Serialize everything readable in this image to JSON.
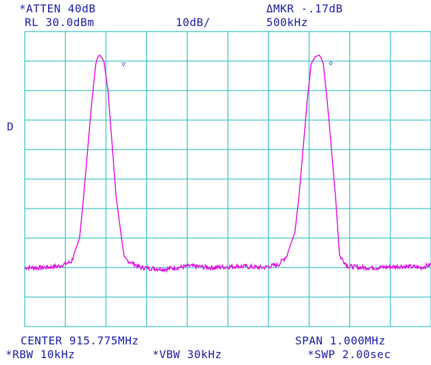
{
  "header": {
    "atten": "*ATTEN 40dB",
    "ref_level": "RL 30.0dBm",
    "scale": "10dB/",
    "delta_marker": "ΔMKR -.17dB",
    "delta_freq": "500kHz"
  },
  "side": {
    "detector": "D"
  },
  "footer": {
    "center": "CENTER 915.775MHz",
    "span": "SPAN 1.000MHz",
    "rbw": "*RBW 10kHz",
    "vbw": "*VBW 30kHz",
    "sweep": "*SWP 2.00sec"
  },
  "colors": {
    "text": "#1a1aa6",
    "grid": "#3fc4c4",
    "trace": "#e000e0",
    "background": "#ffffff"
  },
  "markers": {
    "reference_symbol": "▽",
    "delta_symbol": "◇"
  },
  "chart_data": {
    "type": "line",
    "x_label": "",
    "y_label": "",
    "xlim": [
      915.275,
      916.275
    ],
    "ylim": [
      -70,
      30
    ],
    "x_divisions": 10,
    "y_divisions": 10,
    "grid": true,
    "series": [
      {
        "x": [
          915.275,
          915.32,
          915.36,
          915.39,
          915.41,
          915.42,
          915.43,
          915.44,
          915.45,
          915.455,
          915.46,
          915.47,
          915.48,
          915.49,
          915.5,
          915.52,
          915.56,
          915.62,
          915.68,
          915.74,
          915.8,
          915.86,
          915.9,
          915.92,
          915.94,
          915.95,
          915.96,
          915.97,
          915.98,
          915.99,
          916.0,
          916.005,
          916.01,
          916.02,
          916.03,
          916.04,
          916.05,
          916.07,
          916.1,
          916.15,
          916.2,
          916.25,
          916.275
        ],
        "y": [
          -50,
          -50,
          -49.5,
          -48,
          -40,
          -26,
          -10,
          6,
          19,
          21.5,
          22,
          20,
          10,
          -8,
          -26,
          -47,
          -50,
          -50.5,
          -49.5,
          -50,
          -49.5,
          -50,
          -49,
          -46,
          -38,
          -26,
          -10,
          6,
          19,
          21.5,
          22,
          21,
          19,
          6,
          -10,
          -26,
          -46,
          -49.5,
          -50,
          -50,
          -49.5,
          -50,
          -49
        ]
      }
    ]
  }
}
